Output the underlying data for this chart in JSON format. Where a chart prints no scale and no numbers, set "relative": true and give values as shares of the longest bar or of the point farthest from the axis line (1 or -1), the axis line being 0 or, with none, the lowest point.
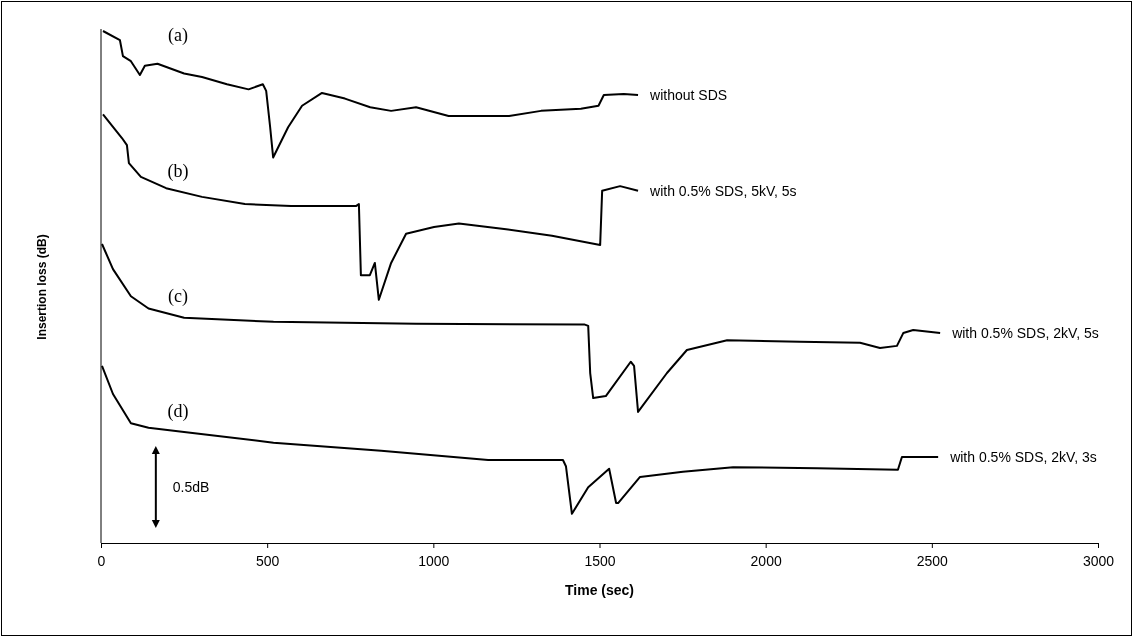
{
  "chart_data": {
    "type": "line",
    "relative": true,
    "xlabel": "Time (sec)",
    "ylabel": "Insertion loss (dB)",
    "xlim": [
      0,
      3000
    ],
    "xticks": [
      0,
      500,
      1000,
      1500,
      2000,
      2500,
      3000
    ],
    "grid": false,
    "marker": "none",
    "line_style": "solid",
    "series": [
      {
        "name": "without SDS",
        "color": "#000000",
        "x": [
          6,
          57,
          66,
          90,
          117,
          132,
          170,
          250,
          304,
          379,
          444,
          487,
          497,
          509,
          518,
          563,
          605,
          665,
          734,
          810,
          873,
          948,
          1046,
          1165,
          1228,
          1324,
          1444,
          1497,
          1513,
          1573,
          1616
        ],
        "values": [
          1.0,
          0.982,
          0.951,
          0.941,
          0.914,
          0.932,
          0.936,
          0.917,
          0.91,
          0.896,
          0.886,
          0.896,
          0.883,
          0.812,
          0.753,
          0.812,
          0.854,
          0.879,
          0.868,
          0.851,
          0.844,
          0.851,
          0.834,
          0.834,
          0.834,
          0.844,
          0.848,
          0.854,
          0.875,
          0.877,
          0.875
        ]
      },
      {
        "name": "with 0.5% SDS, 5kV, 5s",
        "color": "#000000",
        "x": [
          6,
          63,
          78,
          84,
          120,
          196,
          304,
          433,
          572,
          767,
          776,
          782,
          809,
          824,
          836,
          873,
          918,
          1002,
          1077,
          1219,
          1357,
          1502,
          1508,
          1562,
          1616
        ],
        "values": [
          0.837,
          0.791,
          0.777,
          0.742,
          0.715,
          0.693,
          0.676,
          0.662,
          0.658,
          0.658,
          0.662,
          0.523,
          0.523,
          0.547,
          0.475,
          0.547,
          0.604,
          0.617,
          0.624,
          0.613,
          0.6,
          0.582,
          0.688,
          0.697,
          0.688
        ]
      },
      {
        "name": "with 0.5% SDS, 2kV, 5s",
        "color": "#000000",
        "x": [
          3,
          36,
          90,
          143,
          250,
          519,
          948,
          1454,
          1466,
          1472,
          1481,
          1519,
          1594,
          1604,
          1616,
          1703,
          1763,
          1884,
          2103,
          2284,
          2344,
          2395,
          2414,
          2444,
          2525
        ],
        "values": [
          0.584,
          0.535,
          0.482,
          0.458,
          0.44,
          0.432,
          0.428,
          0.427,
          0.424,
          0.332,
          0.283,
          0.287,
          0.354,
          0.346,
          0.256,
          0.332,
          0.377,
          0.396,
          0.393,
          0.391,
          0.381,
          0.385,
          0.41,
          0.416,
          0.41
        ]
      },
      {
        "name": "with 0.5% SDS, 2kV, 3s",
        "color": "#000000",
        "x": [
          3,
          36,
          90,
          143,
          250,
          519,
          843,
          1165,
          1390,
          1399,
          1417,
          1466,
          1529,
          1550,
          1556,
          1622,
          1751,
          1902,
          2155,
          2398,
          2410,
          2519
        ],
        "values": [
          0.346,
          0.291,
          0.234,
          0.225,
          0.217,
          0.196,
          0.18,
          0.162,
          0.162,
          0.15,
          0.057,
          0.109,
          0.145,
          0.078,
          0.078,
          0.129,
          0.139,
          0.148,
          0.146,
          0.143,
          0.168,
          0.168
        ]
      }
    ],
    "annotations": [
      "(a)",
      "(b)",
      "(c)",
      "(d)",
      "0.5dB"
    ]
  }
}
